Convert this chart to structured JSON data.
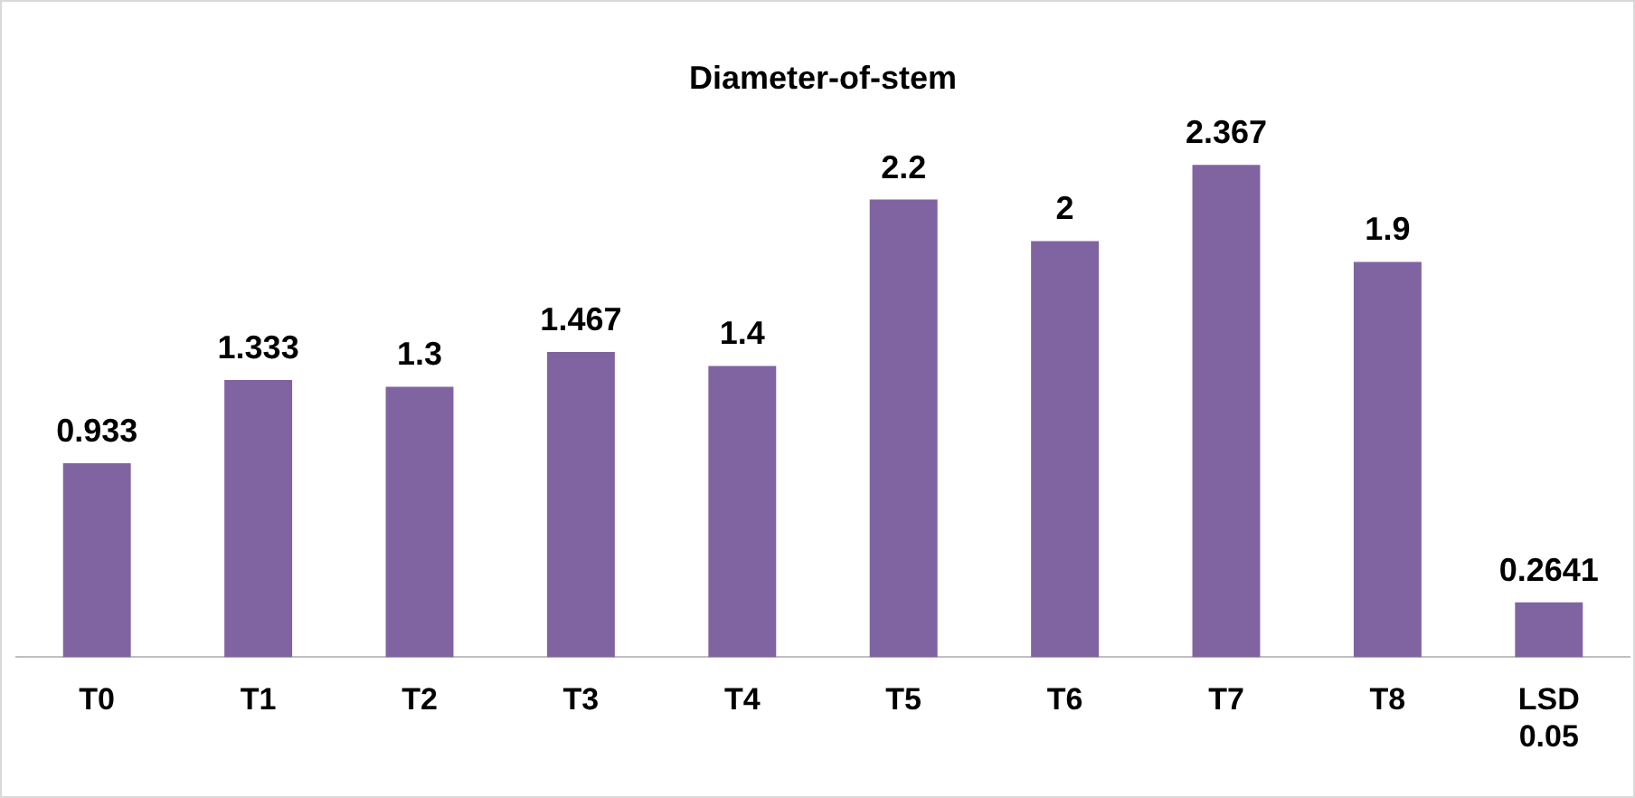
{
  "chart_data": {
    "type": "bar",
    "title": "Diameter-of-stem",
    "categories": [
      "T0",
      "T1",
      "T2",
      "T3",
      "T4",
      "T5",
      "T6",
      "T7",
      "T8",
      "LSD 0.05"
    ],
    "values": [
      0.933,
      1.333,
      1.3,
      1.467,
      1.4,
      2.2,
      2,
      2.367,
      1.9,
      0.2641
    ],
    "color": "#8064a2",
    "data_labels": true,
    "grid": false,
    "legend": false
  }
}
